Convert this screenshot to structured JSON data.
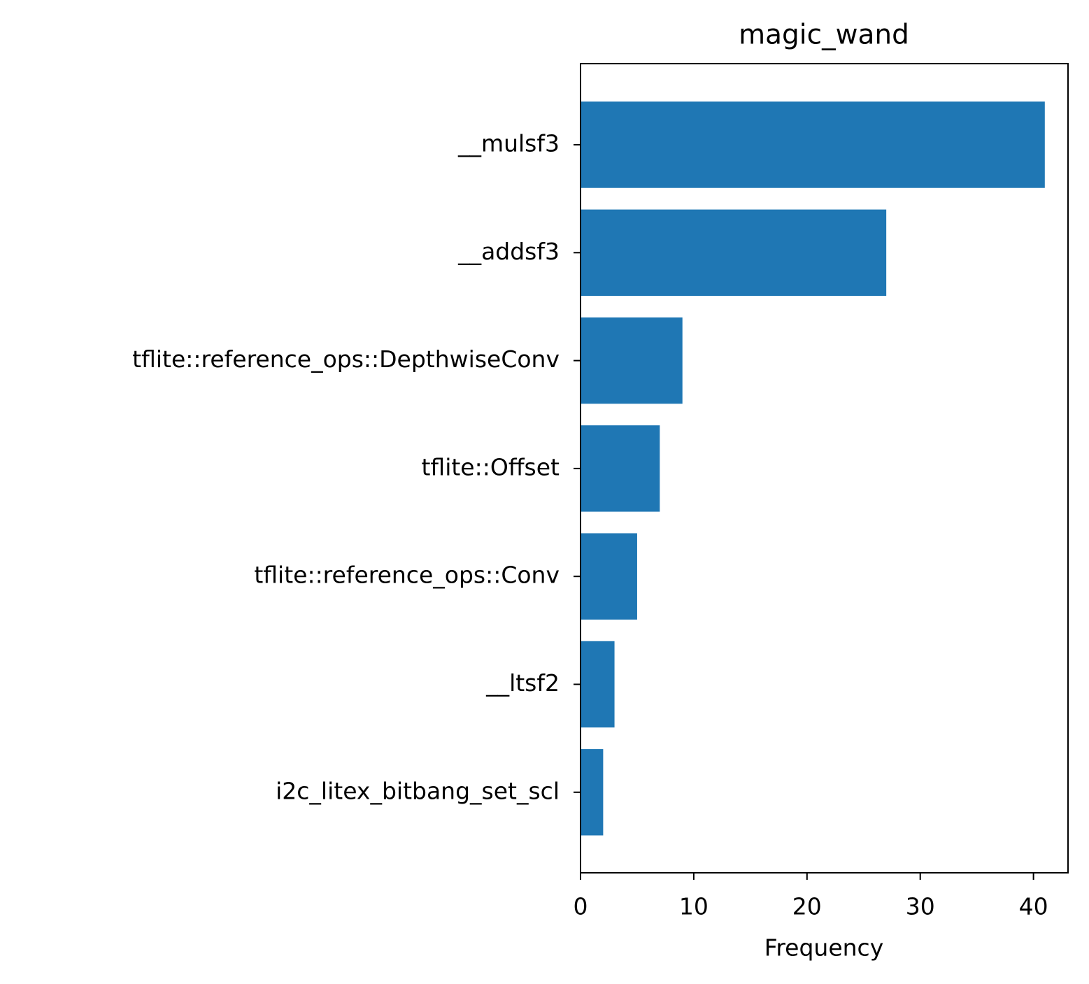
{
  "chart_data": {
    "type": "barh",
    "title": "magic_wand",
    "xlabel": "Frequency",
    "categories": [
      "__mulsf3",
      "__addsf3",
      "tflite::reference_ops::DepthwiseConv",
      "tflite::Offset",
      "tflite::reference_ops::Conv",
      "__ltsf2",
      "i2c_litex_bitbang_set_scl"
    ],
    "values": [
      41,
      27,
      9,
      7,
      5,
      3,
      2
    ],
    "color": "#1f77b4",
    "xlim": [
      0,
      43.05
    ],
    "xticks": [
      0,
      10,
      20,
      30,
      40
    ],
    "grid": false
  }
}
